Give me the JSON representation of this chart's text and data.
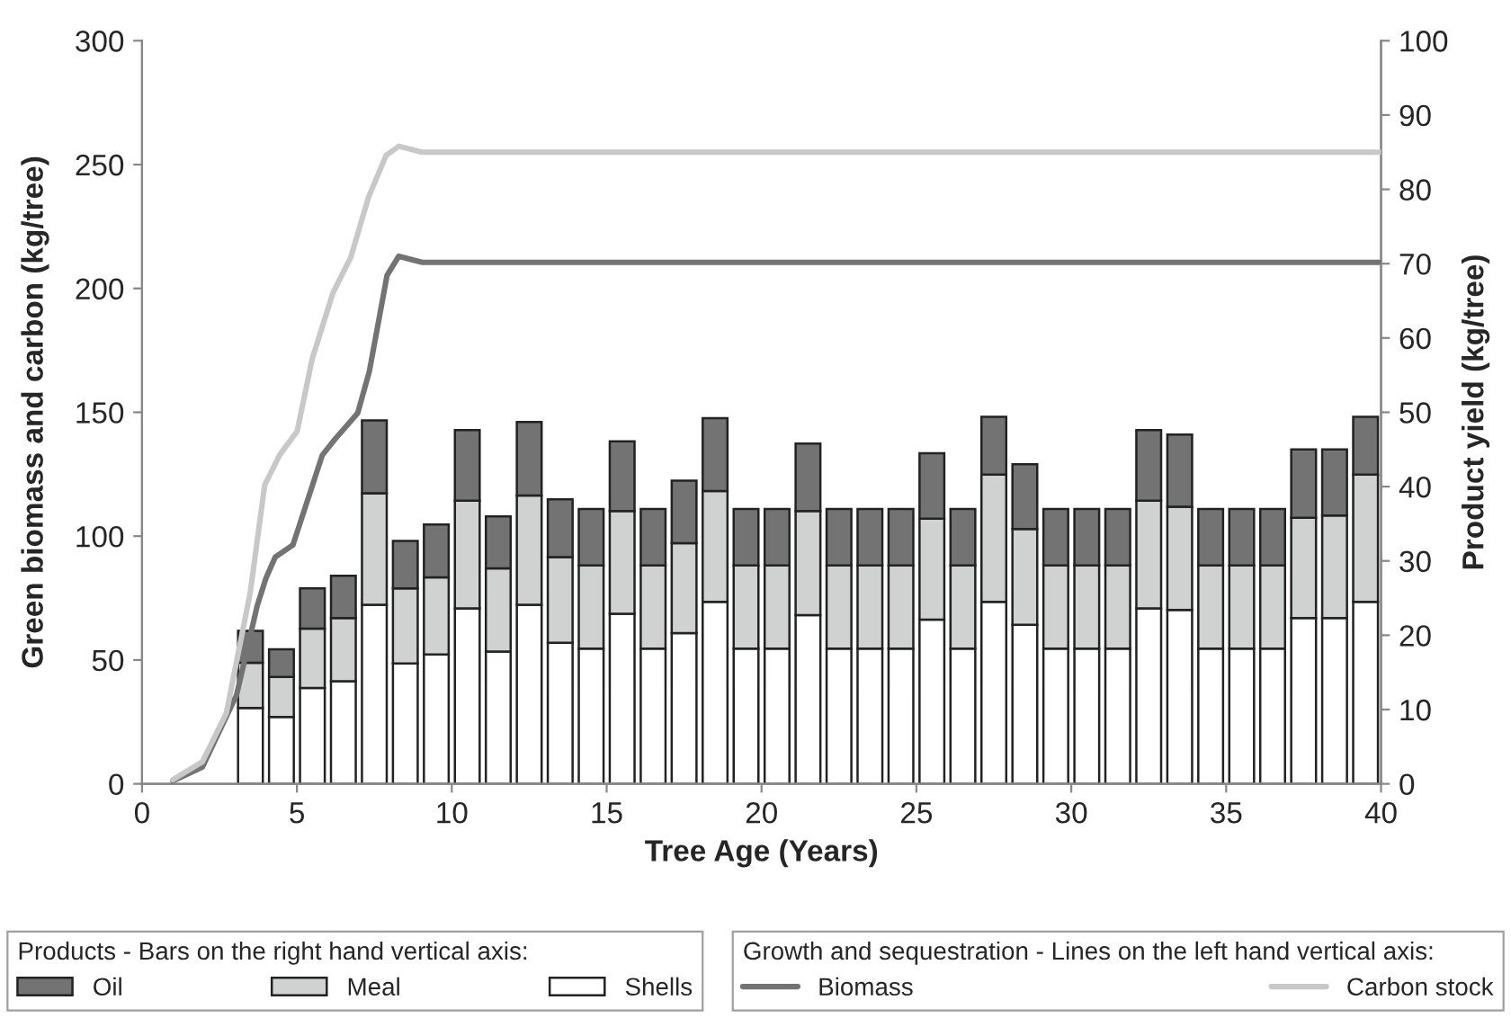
{
  "chart_data": {
    "type": "bar",
    "xlabel": "Tree Age (Years)",
    "ylabel": "Green biomass and carbon (kg/tree)",
    "y2label": "Product yield (kg/tree)",
    "legend_title": [
      "Products - Bars on the right hand vertical axis:",
      "Growth and sequestration - Lines on the left hand vertical axis:"
    ],
    "stacked": true,
    "legend": "bottom",
    "xlim": [
      0,
      40
    ],
    "xticks": [
      0,
      5,
      10,
      15,
      20,
      25,
      30,
      35,
      40
    ],
    "ylim": [
      0,
      300
    ],
    "yticks": [
      0,
      50,
      100,
      150,
      200,
      250,
      300
    ],
    "y2lim": [
      0,
      100
    ],
    "y2ticks": [
      0,
      10,
      20,
      30,
      40,
      50,
      60,
      70,
      80,
      90,
      100
    ],
    "x": [
      3.5,
      4.5,
      5.5,
      6.5,
      7.5,
      8.5,
      9.5,
      10.5,
      11.5,
      12.5,
      13.5,
      14.5,
      15.5,
      16.5,
      17.5,
      18.5,
      19.5,
      20.5,
      21.5,
      22.5,
      23.5,
      24.5,
      25.5,
      26.5,
      27.5,
      28.5,
      29.5,
      30.5,
      31.5,
      32.5,
      33.5,
      34.5,
      35.5,
      36.5,
      37.5,
      38.5,
      39.5
    ],
    "series": [
      {
        "name": "Shells",
        "axis": "y2",
        "color": "#ffffff",
        "values": [
          10.2,
          9.0,
          12.9,
          13.8,
          24.1,
          16.2,
          17.4,
          23.6,
          17.8,
          24.1,
          19.0,
          18.2,
          22.9,
          18.2,
          20.3,
          24.5,
          18.2,
          18.2,
          22.7,
          18.2,
          18.2,
          18.2,
          22.1,
          18.2,
          24.5,
          21.4,
          18.2,
          18.2,
          18.2,
          23.6,
          23.4,
          18.2,
          18.2,
          18.2,
          22.3,
          22.3,
          24.5
        ]
      },
      {
        "name": "Meal",
        "axis": "y2",
        "color": "#d0d2d1",
        "values": [
          6.1,
          5.4,
          8.0,
          8.5,
          15.0,
          10.1,
          10.4,
          14.5,
          11.2,
          14.7,
          11.5,
          11.2,
          13.8,
          11.2,
          12.1,
          14.9,
          11.2,
          11.2,
          14.0,
          11.2,
          11.2,
          11.2,
          13.6,
          11.2,
          17.1,
          12.9,
          11.2,
          11.2,
          11.2,
          14.5,
          13.9,
          11.2,
          11.2,
          11.2,
          13.5,
          13.8,
          17.1
        ]
      },
      {
        "name": "Oil",
        "axis": "y2",
        "color": "#737373",
        "values": [
          4.3,
          3.7,
          5.4,
          5.7,
          9.8,
          6.4,
          7.1,
          9.5,
          7.0,
          9.9,
          7.8,
          7.6,
          9.4,
          7.6,
          8.4,
          9.8,
          7.6,
          7.6,
          9.1,
          7.6,
          7.6,
          7.6,
          8.8,
          7.6,
          7.8,
          8.7,
          7.6,
          7.6,
          7.6,
          9.5,
          9.7,
          7.6,
          7.6,
          7.6,
          9.2,
          8.9,
          7.8
        ]
      },
      {
        "name": "Biomass",
        "type": "line",
        "axis": "y",
        "color": "#737373",
        "x": [
          1.0,
          1.95,
          3.05,
          3.72,
          4.0,
          4.3,
          4.87,
          5.82,
          6.2,
          6.96,
          7.34,
          7.91,
          8.29,
          9.05,
          40
        ],
        "values": [
          1.2,
          6.8,
          35.8,
          72,
          83,
          91.5,
          96.4,
          132.7,
          138.7,
          149.6,
          166.6,
          205.3,
          213,
          210.5,
          210.5
        ]
      },
      {
        "name": "Carbon stock",
        "type": "line",
        "axis": "y",
        "color": "#c8c8c8",
        "x": [
          1.0,
          1.95,
          2.72,
          3.49,
          3.96,
          4.44,
          5.01,
          5.49,
          6.16,
          6.74,
          7.31,
          7.88,
          8.29,
          9.05,
          40
        ],
        "values": [
          1.7,
          8.9,
          28.5,
          77,
          120.6,
          132.7,
          142.4,
          171.4,
          198.1,
          212.6,
          236.8,
          253.7,
          257.4,
          255,
          255
        ]
      }
    ]
  }
}
